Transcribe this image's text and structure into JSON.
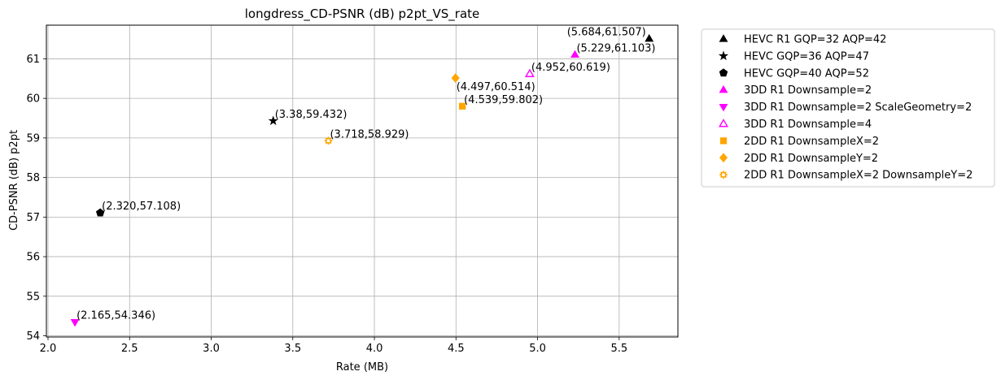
{
  "chart_data": {
    "type": "scatter",
    "title": "longdress_CD-PSNR (dB) p2pt_VS_rate",
    "xlabel": "Rate (MB)",
    "ylabel": "CD-PSNR (dB) p2pt",
    "xlim": [
      1.99,
      5.86
    ],
    "ylim": [
      53.97,
      61.85
    ],
    "xticks": [
      2.0,
      2.5,
      3.0,
      3.5,
      4.0,
      4.5,
      5.0,
      5.5
    ],
    "xtick_labels": [
      "2.0",
      "2.5",
      "3.0",
      "3.5",
      "4.0",
      "4.5",
      "5.0",
      "5.5"
    ],
    "yticks": [
      54,
      55,
      56,
      57,
      58,
      59,
      60,
      61
    ],
    "ytick_labels": [
      "54",
      "55",
      "56",
      "57",
      "58",
      "59",
      "60",
      "61"
    ],
    "grid": true,
    "legend_position": "outside-right-top",
    "series": [
      {
        "name": "HEVC R1 GQP=32 AQP=42",
        "marker": "triangle-up",
        "color": "#000000",
        "filled": true,
        "x": 5.684,
        "y": 61.507,
        "label": "(5.684,61.507)",
        "label_anchor": "left-of"
      },
      {
        "name": "HEVC GQP=36 AQP=47",
        "marker": "star",
        "color": "#000000",
        "filled": true,
        "x": 3.38,
        "y": 59.432,
        "label": "(3.38,59.432)",
        "label_anchor": "above-right"
      },
      {
        "name": "HEVC GQP=40 AQP=52",
        "marker": "pentagon",
        "color": "#000000",
        "filled": true,
        "x": 2.32,
        "y": 57.108,
        "label": "(2.320,57.108)",
        "label_anchor": "above-right"
      },
      {
        "name": "3DD R1 Downsample=2",
        "marker": "triangle-up",
        "color": "#ff00ff",
        "filled": true,
        "x": 5.229,
        "y": 61.103,
        "label": "(5.229,61.103)",
        "label_anchor": "above-right"
      },
      {
        "name": "3DD R1 Downsample=2 ScaleGeometry=2",
        "marker": "triangle-down",
        "color": "#ff00ff",
        "filled": true,
        "x": 2.165,
        "y": 54.346,
        "label": "(2.165,54.346)",
        "label_anchor": "above-right"
      },
      {
        "name": "3DD R1 Downsample=4",
        "marker": "triangle-up",
        "color": "#ff00ff",
        "filled": false,
        "x": 4.952,
        "y": 60.619,
        "label": "(4.952,60.619)",
        "label_anchor": "above-right"
      },
      {
        "name": "2DD R1 DownsampleX=2",
        "marker": "square",
        "color": "#ffa500",
        "filled": true,
        "x": 4.539,
        "y": 59.802,
        "label": "(4.539,59.802)",
        "label_anchor": "above-right"
      },
      {
        "name": "2DD R1 DownsampleY=2",
        "marker": "diamond",
        "color": "#ffa500",
        "filled": true,
        "x": 4.497,
        "y": 60.514,
        "label": "(4.497,60.514)",
        "label_anchor": "below-right"
      },
      {
        "name": "2DD R1 DownsampleX=2 DownsampleY=2",
        "marker": "gear",
        "color": "#ffa500",
        "filled": false,
        "x": 3.718,
        "y": 58.929,
        "label": "(3.718,58.929)",
        "label_anchor": "above-right"
      }
    ]
  }
}
